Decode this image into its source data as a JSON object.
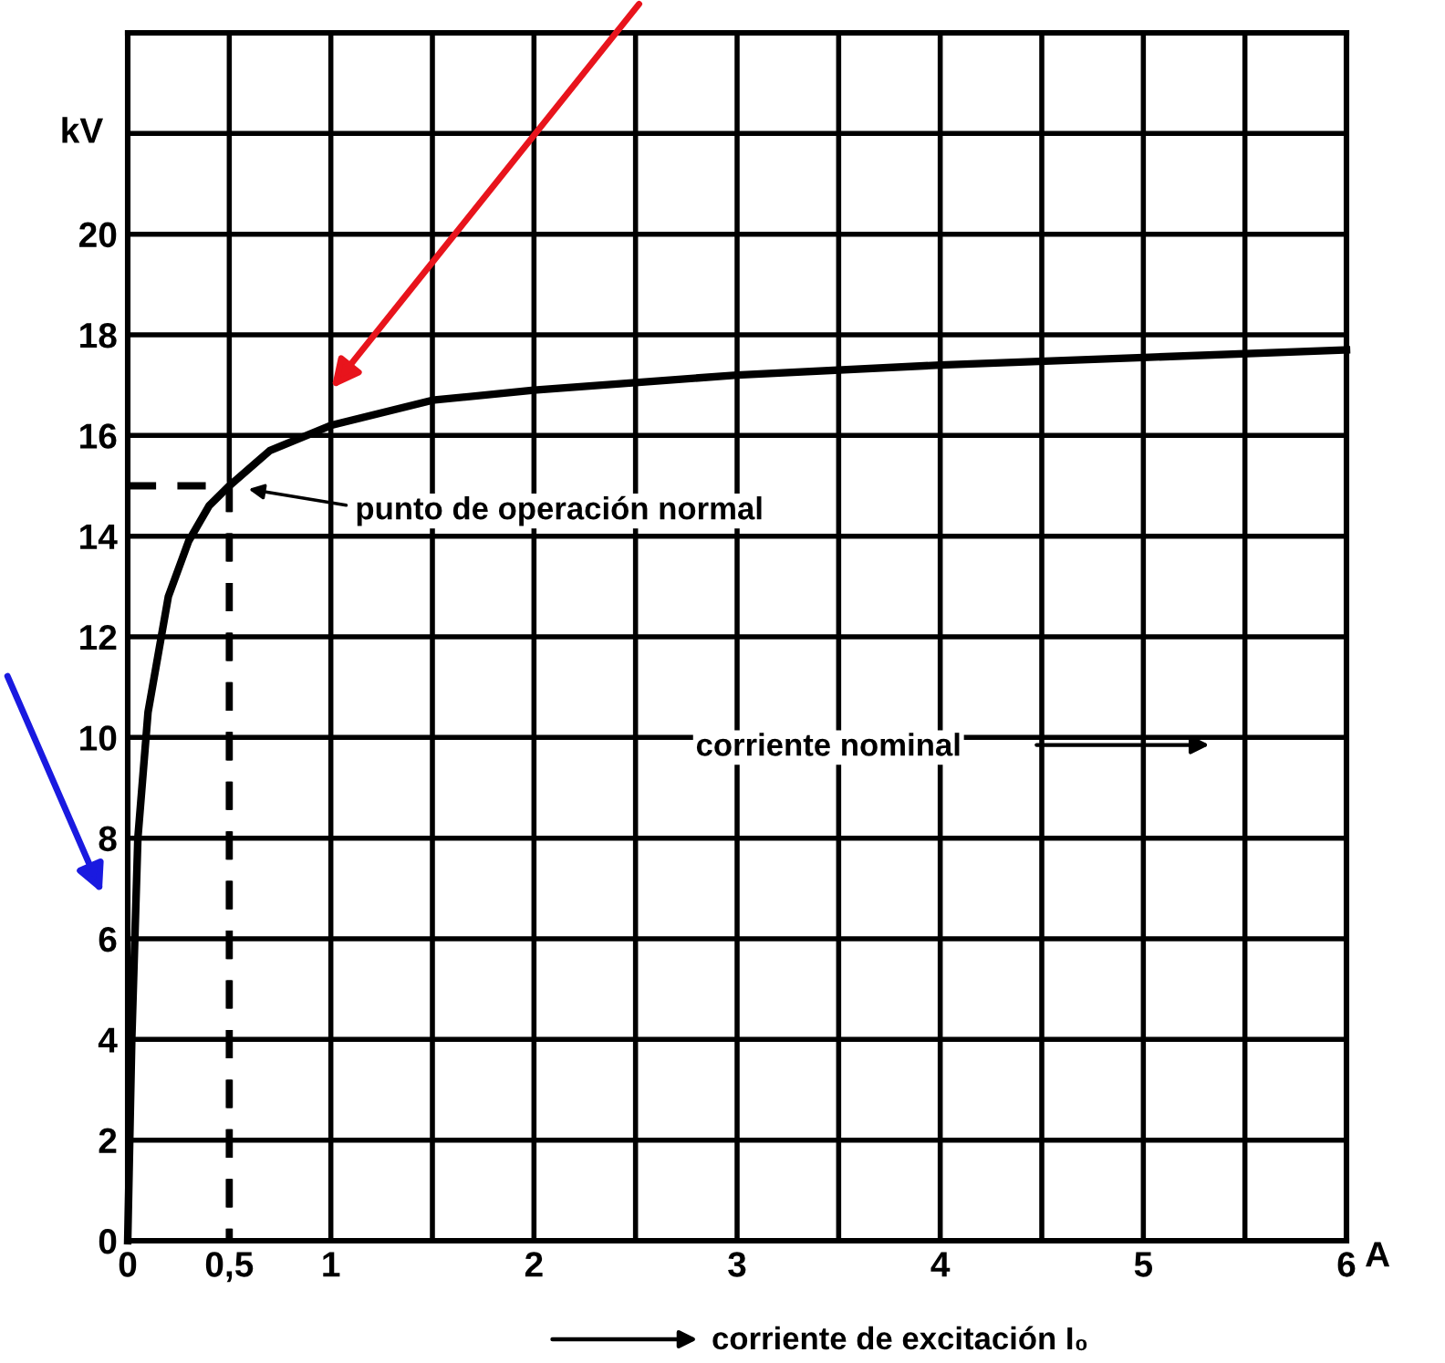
{
  "chart_data": {
    "type": "line",
    "xlabel": "A",
    "ylabel": "kV",
    "series": [
      {
        "color": "#000000",
        "line_style": "solid",
        "x": [
          0,
          0.02,
          0.05,
          0.1,
          0.2,
          0.3,
          0.4,
          0.5,
          0.7,
          1,
          1.5,
          2,
          2.5,
          3,
          4,
          5,
          6
        ],
        "values": [
          0,
          4,
          8,
          10.5,
          12.8,
          13.9,
          14.6,
          15,
          15.7,
          16.2,
          16.7,
          16.9,
          17.05,
          17.2,
          17.4,
          17.55,
          17.7
        ]
      },
      {
        "color": "#000000",
        "line_style": "dashed",
        "x": [
          0,
          0.5,
          0.5
        ],
        "values": [
          15,
          15,
          0
        ]
      }
    ],
    "annotations": [
      "punto de operación normal",
      "corriente nominal",
      "corriente de excitación I₀"
    ],
    "xlim": [
      0,
      6
    ],
    "ylim": [
      0,
      24
    ],
    "xticks": [
      0,
      {
        "value": 0.5,
        "label": "0,5"
      },
      1,
      {
        "value": 1.5,
        "label": null
      },
      2,
      {
        "value": 2.5,
        "label": null
      },
      3,
      {
        "value": 3.5,
        "label": null
      },
      4,
      {
        "value": 4.5,
        "label": null
      },
      5,
      {
        "value": 5.5,
        "label": null
      },
      6
    ],
    "yticks": [
      0,
      2,
      4,
      6,
      8,
      10,
      12,
      14,
      16,
      18,
      20,
      {
        "value": 22,
        "label": null
      },
      {
        "value": 24,
        "label": null
      }
    ],
    "grid": true,
    "marker": "none"
  }
}
